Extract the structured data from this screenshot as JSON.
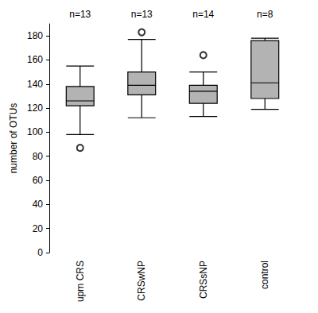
{
  "chart_data": {
    "type": "boxplot",
    "y_label": "number of OTUs",
    "categories": [
      "upm CRS",
      "CRSwNP",
      "CRSsNP",
      "control"
    ],
    "annotations": [
      "n=13",
      "n=13",
      "n=14",
      "n=8"
    ],
    "values": [
      [
        98,
        122,
        126,
        138,
        155
      ],
      [
        112,
        131,
        139,
        150,
        177
      ],
      [
        113,
        124,
        134,
        139,
        150
      ],
      [
        119,
        128,
        141,
        176,
        178
      ]
    ],
    "outliers": [
      [
        87
      ],
      [
        183
      ],
      [
        164
      ],
      []
    ],
    "color": "#b3b3b3",
    "ylim": [
      0,
      190
    ],
    "yticks": [
      0,
      20,
      40,
      60,
      80,
      100,
      120,
      140,
      160,
      180
    ],
    "grid": false
  }
}
